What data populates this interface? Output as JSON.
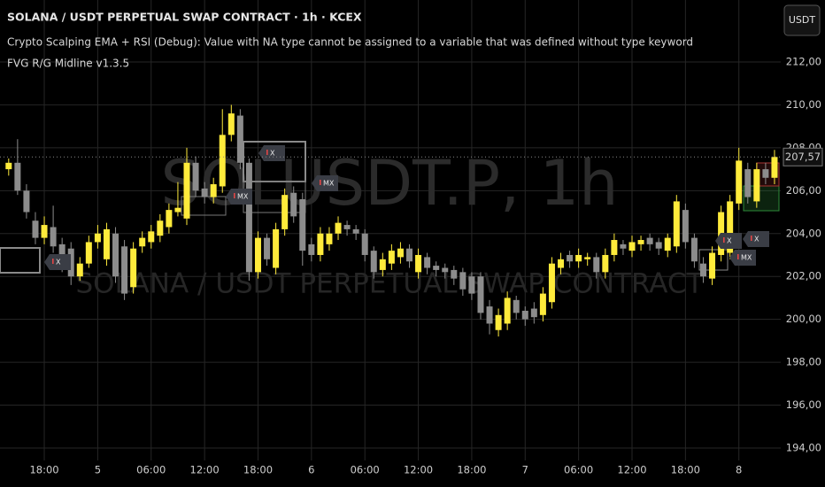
{
  "chart_data": {
    "type": "candlestick",
    "title": "SOLANA / USDT PERPETUAL SWAP CONTRACT · 1h · KCEX",
    "indicators": [
      "Crypto Scalping EMA + RSI (Debug): Value with NA type cannot be assigned to a variable that was defined without type keyword",
      "FVG R/G Midline v1.3.5"
    ],
    "watermark": [
      "SOLUSDT.P, 1h",
      "SOLANA / USDT PERPETUAL SWAP CONTRACT"
    ],
    "currency_button": "USDT",
    "markers": [
      "X",
      "MX",
      "X",
      "MX",
      "X",
      "X",
      "MX"
    ],
    "categories": [
      null,
      null,
      null,
      null,
      "18:00",
      null,
      null,
      null,
      null,
      null,
      "5",
      null,
      null,
      null,
      null,
      null,
      "06:00",
      null,
      null,
      null,
      null,
      null,
      "12:00",
      null,
      null,
      null,
      null,
      null,
      "18:00",
      null,
      null,
      null,
      null,
      null,
      "6",
      null,
      null,
      null,
      null,
      null,
      "06:00",
      null,
      null,
      null,
      null,
      null,
      "12:00",
      null,
      null,
      null,
      null,
      null,
      "18:00",
      null,
      null,
      null,
      null,
      null,
      "7",
      null,
      null,
      null,
      null,
      null,
      "06:00",
      null,
      null,
      null,
      null,
      null,
      "12:00",
      null,
      null,
      null,
      null,
      null,
      "18:00",
      null,
      null,
      null,
      null,
      null,
      "8",
      null,
      null,
      null,
      null
    ],
    "open": [
      207.0,
      207.3,
      206.0,
      204.6,
      203.8,
      204.3,
      203.5,
      203.3,
      202.0,
      202.6,
      203.6,
      202.8,
      204.0,
      203.4,
      201.5,
      203.4,
      203.6,
      203.9,
      204.3,
      205.0,
      204.7,
      207.3,
      206.1,
      205.7,
      206.2,
      208.6,
      209.5,
      207.3,
      202.2,
      203.8,
      202.4,
      204.2,
      205.9,
      205.6,
      203.5,
      203.0,
      203.5,
      204.0,
      204.4,
      204.2,
      204.0,
      203.2,
      202.3,
      202.6,
      202.9,
      203.3,
      202.2,
      202.9,
      202.5,
      202.4,
      202.3,
      202.2,
      202.0,
      202.0,
      200.6,
      199.5,
      199.8,
      200.9,
      200.4,
      200.5,
      200.2,
      200.8,
      202.4,
      203.0,
      202.7,
      202.8,
      202.9,
      202.2,
      203.0,
      203.5,
      203.2,
      203.5,
      203.8,
      203.6,
      203.2,
      203.4,
      205.1,
      203.8,
      202.6,
      201.9,
      203.0,
      203.1,
      205.4,
      207.0,
      205.5,
      207.0,
      206.6
    ],
    "high": [
      207.5,
      208.4,
      206.3,
      205.0,
      204.8,
      205.3,
      203.8,
      203.6,
      202.9,
      203.9,
      204.4,
      204.5,
      204.3,
      203.7,
      203.6,
      204.1,
      204.4,
      204.9,
      205.4,
      206.4,
      208.0,
      207.6,
      206.4,
      206.6,
      209.8,
      210.0,
      209.8,
      207.5,
      204.1,
      204.0,
      204.5,
      206.1,
      206.2,
      205.9,
      203.8,
      204.3,
      204.3,
      204.8,
      204.6,
      204.4,
      204.2,
      203.4,
      203.1,
      203.5,
      203.6,
      203.5,
      203.3,
      203.1,
      202.7,
      202.6,
      202.5,
      202.4,
      202.2,
      202.2,
      200.9,
      200.5,
      201.3,
      201.1,
      200.6,
      200.8,
      201.5,
      202.9,
      203.1,
      203.2,
      203.3,
      203.1,
      203.1,
      203.3,
      204.0,
      203.7,
      203.9,
      203.9,
      204.0,
      203.8,
      204.0,
      205.8,
      205.4,
      204.0,
      202.9,
      203.4,
      205.3,
      205.8,
      208.0,
      207.3,
      207.3,
      207.3,
      207.9
    ],
    "low": [
      206.7,
      205.8,
      204.7,
      203.5,
      203.5,
      203.1,
      202.2,
      201.6,
      201.8,
      202.4,
      203.3,
      202.5,
      201.7,
      200.9,
      201.2,
      203.1,
      203.3,
      203.6,
      204.0,
      204.8,
      204.4,
      205.7,
      205.4,
      205.4,
      205.9,
      208.3,
      207.0,
      201.8,
      201.9,
      202.5,
      202.1,
      203.9,
      204.5,
      202.5,
      202.7,
      202.7,
      203.2,
      203.7,
      203.9,
      203.7,
      202.7,
      201.9,
      202.0,
      202.3,
      202.6,
      202.4,
      201.9,
      202.1,
      202.0,
      201.9,
      201.6,
      201.1,
      200.9,
      200.0,
      199.3,
      199.2,
      199.5,
      200.0,
      199.7,
      199.8,
      199.9,
      200.5,
      202.1,
      202.4,
      202.4,
      202.5,
      201.9,
      201.9,
      202.7,
      203.0,
      202.9,
      203.2,
      203.2,
      203.0,
      202.9,
      203.1,
      203.3,
      202.4,
      201.7,
      201.6,
      202.7,
      202.8,
      205.1,
      205.4,
      205.2,
      206.3,
      206.3
    ],
    "close": [
      207.3,
      206.0,
      205.0,
      203.8,
      204.4,
      203.4,
      202.5,
      202.0,
      202.6,
      203.6,
      204.0,
      204.2,
      202.0,
      201.2,
      203.3,
      203.8,
      204.1,
      204.6,
      205.1,
      205.2,
      207.3,
      206.0,
      205.7,
      206.3,
      208.6,
      209.6,
      207.3,
      202.2,
      203.8,
      202.8,
      204.2,
      205.8,
      204.8,
      203.2,
      203.0,
      204.0,
      204.0,
      204.5,
      204.2,
      204.0,
      203.0,
      202.2,
      202.8,
      203.2,
      203.3,
      202.7,
      203.0,
      202.4,
      202.3,
      202.2,
      201.9,
      201.4,
      201.2,
      200.3,
      199.8,
      200.2,
      201.0,
      200.3,
      200.0,
      200.1,
      201.2,
      202.6,
      202.8,
      202.7,
      203.0,
      202.9,
      202.2,
      203.0,
      203.7,
      203.3,
      203.6,
      203.7,
      203.5,
      203.3,
      203.8,
      205.5,
      203.6,
      202.7,
      202.0,
      203.1,
      205.0,
      205.5,
      207.4,
      205.7,
      207.0,
      206.6,
      207.57
    ],
    "up_color": "#ffeb3b",
    "down_color": "#8c8c8c",
    "last_price": {
      "value": 207.57,
      "label": "207,57"
    },
    "ylim": [
      193.42,
      214.89
    ],
    "yticks": [
      {
        "value": 194,
        "label": "194,00"
      },
      {
        "value": 196,
        "label": "196,00"
      },
      {
        "value": 198,
        "label": "198,00"
      },
      {
        "value": 200,
        "label": "200,00"
      },
      {
        "value": 202,
        "label": "202,00"
      },
      {
        "value": 204,
        "label": "204,00"
      },
      {
        "value": 206,
        "label": "206,00"
      },
      {
        "value": 208,
        "label": "208,00"
      },
      {
        "value": 210,
        "label": "210,00"
      },
      {
        "value": 212,
        "label": "212,00"
      }
    ],
    "grid": true
  }
}
